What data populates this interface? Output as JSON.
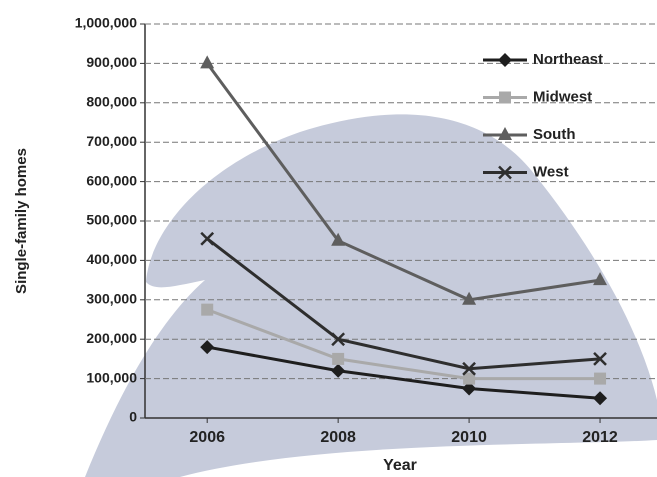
{
  "chart_data": {
    "type": "line",
    "xlabel": "Year",
    "ylabel": "Single-family homes",
    "x": [
      2006,
      2008,
      2010,
      2012
    ],
    "xlim": [
      2005.05,
      2012.87
    ],
    "xticks": [
      2006,
      2008,
      2010,
      2012
    ],
    "ylim": [
      0,
      1000000
    ],
    "yticks": [
      0,
      {
        "value": 100000,
        "label": "100,000"
      },
      {
        "value": 200000,
        "label": "200,000"
      },
      {
        "value": 300000,
        "label": "300,000"
      },
      {
        "value": 400000,
        "label": "400,000"
      },
      {
        "value": 500000,
        "label": "500,000"
      },
      {
        "value": 600000,
        "label": "600,000"
      },
      {
        "value": 700000,
        "label": "700,000"
      },
      {
        "value": 800000,
        "label": "800,000"
      },
      {
        "value": 900000,
        "label": "900,000"
      },
      {
        "value": 1000000,
        "label": "1,000,000"
      }
    ],
    "grid": true,
    "legend": "upper right",
    "series": [
      {
        "name": "Northeast",
        "color": "#1e1e1e",
        "marker": "diamond",
        "values": [
          180000,
          120000,
          75000,
          50000
        ]
      },
      {
        "name": "Midwest",
        "color": "#a9a9a9",
        "marker": "square",
        "values": [
          275000,
          150000,
          100000,
          100000
        ]
      },
      {
        "name": "South",
        "color": "#5e5e5e",
        "marker": "triangle",
        "values": [
          900000,
          450000,
          300000,
          350000
        ]
      },
      {
        "name": "West",
        "color": "#2e2e2e",
        "marker": "x",
        "values": [
          455000,
          200000,
          125000,
          150000
        ]
      }
    ]
  }
}
